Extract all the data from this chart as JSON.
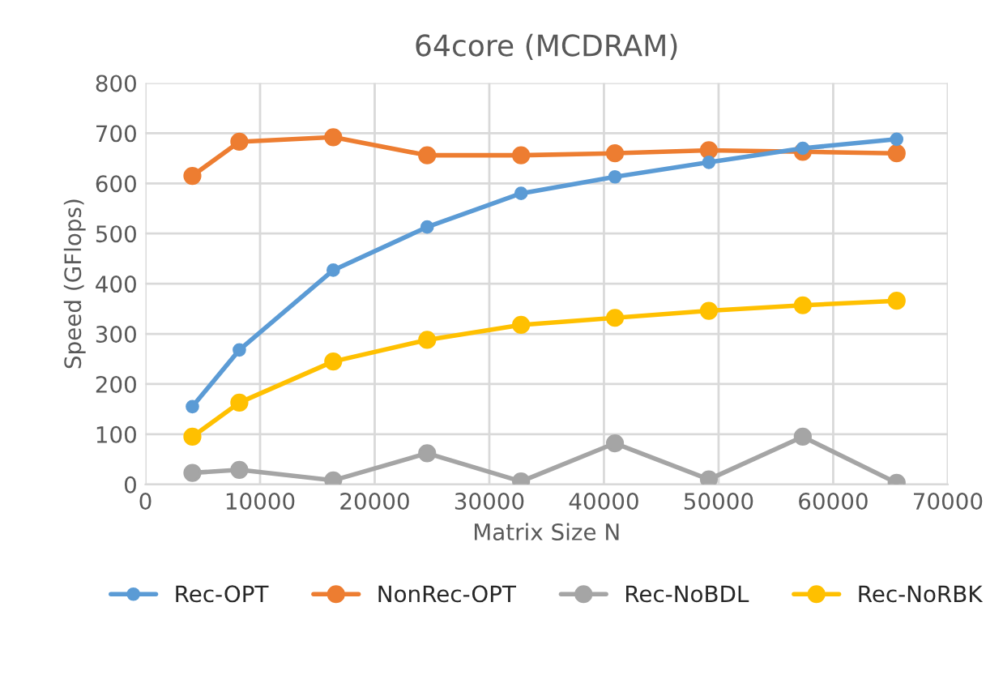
{
  "chart_data": {
    "type": "line",
    "title": "64core (MCDRAM)",
    "xlabel": "Matrix Size N",
    "ylabel": "Speed (GFlops)",
    "x": [
      4096,
      8192,
      16384,
      24576,
      32768,
      40960,
      49152,
      57344,
      65536
    ],
    "series": [
      {
        "name": "Rec-OPT",
        "color": "#5b9bd5",
        "values": [
          155,
          268,
          427,
          513,
          580,
          613,
          642,
          670,
          688
        ]
      },
      {
        "name": "NonRec-OPT",
        "color": "#ed7d31",
        "values": [
          615,
          683,
          692,
          656,
          656,
          660,
          666,
          663,
          660
        ]
      },
      {
        "name": "Rec-NoBDL",
        "color": "#a5a5a5",
        "values": [
          23,
          29,
          8,
          62,
          6,
          82,
          10,
          95,
          3
        ]
      },
      {
        "name": "Rec-NoRBK",
        "color": "#ffc000",
        "values": [
          95,
          163,
          245,
          288,
          318,
          332,
          346,
          357,
          366
        ]
      }
    ],
    "xlim": [
      0,
      70000
    ],
    "xticks": [
      0,
      10000,
      20000,
      30000,
      40000,
      50000,
      60000,
      70000
    ],
    "ylim": [
      0,
      800
    ],
    "yticks": [
      0,
      100,
      200,
      300,
      400,
      500,
      600,
      700,
      800
    ],
    "grid": true,
    "legend": "bottom",
    "marker": "circle",
    "line_style": "solid"
  }
}
